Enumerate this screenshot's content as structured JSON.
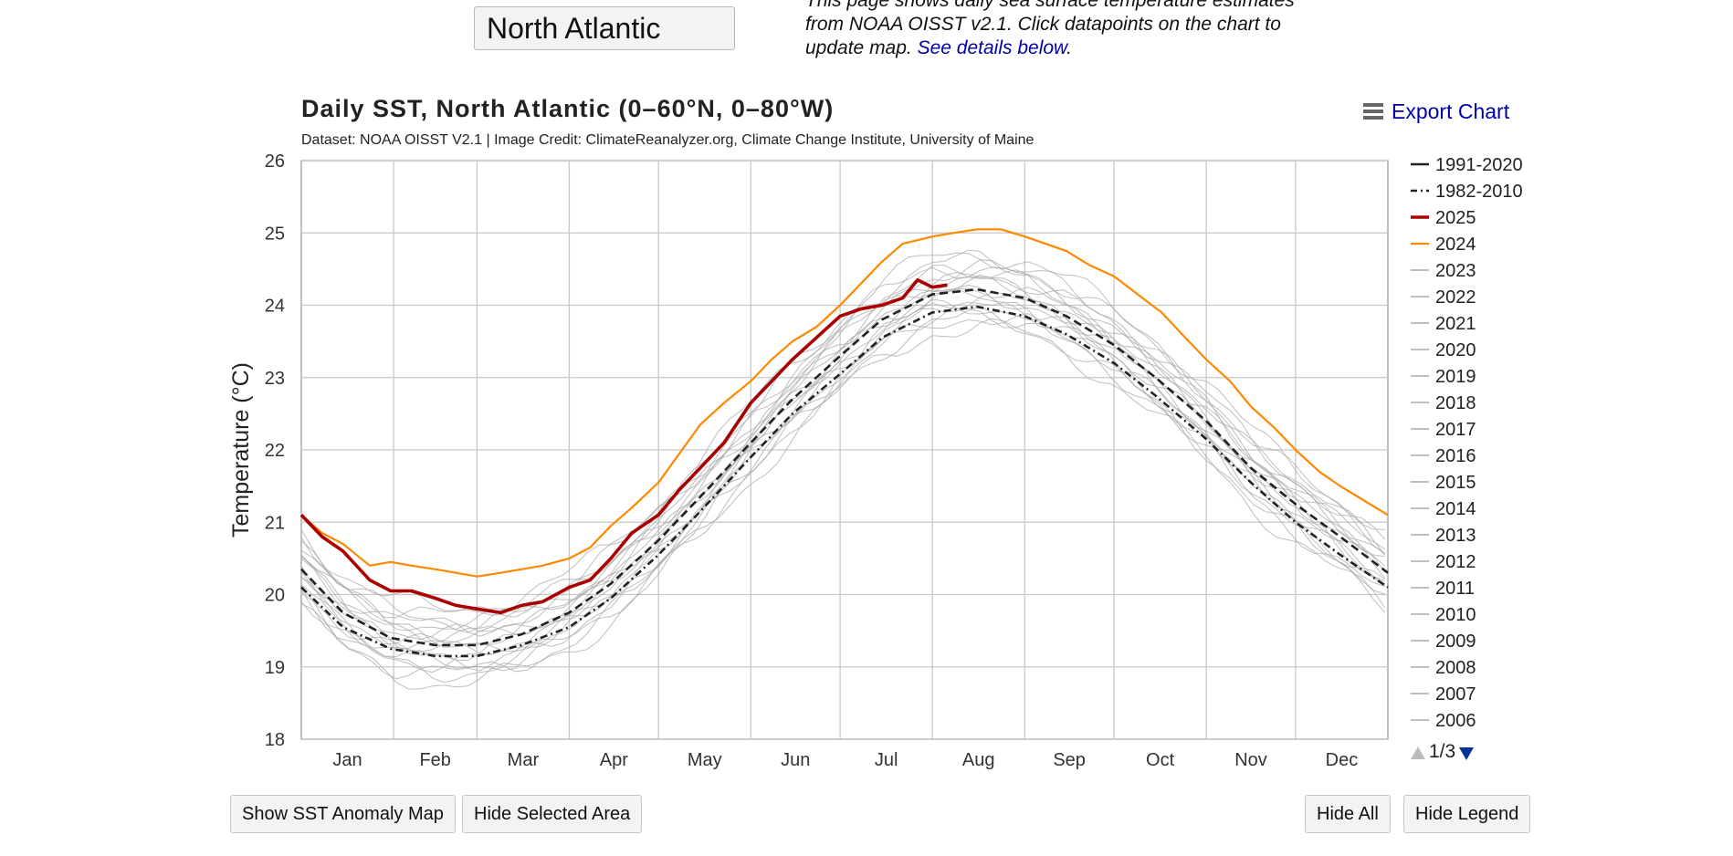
{
  "region_select": {
    "value": "North Atlantic"
  },
  "intro": {
    "text": "This page shows daily sea surface temperature estimates from NOAA OISST v2.1. Click datapoints on the chart to update map.",
    "link": "See details below",
    "end": "."
  },
  "export_label": "Export Chart",
  "buttons": {
    "show_anomaly": "Show SST Anomaly Map",
    "hide_area": "Hide Selected Area",
    "hide_all": "Hide All",
    "hide_legend": "Hide Legend"
  },
  "legend_page": "1/3",
  "colors": {
    "clim": "#222222",
    "y2025": "#aa0000",
    "y2024": "#ff8800",
    "past": "#aaaaaa",
    "grid": "#c8c8c8",
    "link": "#0000aa"
  },
  "chart_data": {
    "type": "line",
    "title": "Daily SST, North Atlantic (0–60°N, 0–80°W)",
    "subtitle": "Dataset: NOAA OISST V2.1 | Image Credit: ClimateReanalyzer.org, Climate Change Institute, University of Maine",
    "xlabel": "",
    "ylabel": "Temperature (°C)",
    "ylim": [
      18,
      26
    ],
    "yticks": [
      18,
      19,
      20,
      21,
      22,
      23,
      24,
      25,
      26
    ],
    "xlim": [
      1,
      366
    ],
    "months": [
      "Jan",
      "Feb",
      "Mar",
      "Apr",
      "May",
      "Jun",
      "Jul",
      "Aug",
      "Sep",
      "Oct",
      "Nov",
      "Dec"
    ],
    "month_starts": [
      1,
      32,
      60,
      91,
      121,
      152,
      182,
      213,
      244,
      274,
      305,
      335
    ],
    "series": [
      {
        "name": "1991-2020",
        "style": "dashed",
        "x": [
          1,
          15,
          31,
          46,
          60,
          75,
          91,
          105,
          121,
          135,
          152,
          166,
          182,
          196,
          213,
          228,
          244,
          258,
          274,
          288,
          305,
          320,
          335,
          350,
          366
        ],
        "values": [
          20.35,
          19.75,
          19.4,
          19.3,
          19.3,
          19.45,
          19.75,
          20.15,
          20.75,
          21.35,
          22.1,
          22.7,
          23.3,
          23.8,
          24.15,
          24.22,
          24.1,
          23.85,
          23.45,
          23.0,
          22.4,
          21.75,
          21.25,
          20.8,
          20.3
        ]
      },
      {
        "name": "1982-2010",
        "style": "dashdot",
        "x": [
          1,
          15,
          31,
          46,
          60,
          75,
          91,
          105,
          121,
          135,
          152,
          166,
          182,
          196,
          213,
          228,
          244,
          258,
          274,
          288,
          305,
          320,
          335,
          350,
          366
        ],
        "values": [
          20.1,
          19.55,
          19.25,
          19.15,
          19.15,
          19.3,
          19.55,
          19.95,
          20.55,
          21.15,
          21.9,
          22.5,
          23.05,
          23.55,
          23.9,
          23.98,
          23.85,
          23.6,
          23.2,
          22.75,
          22.15,
          21.55,
          21.0,
          20.55,
          20.1
        ]
      },
      {
        "name": "2025",
        "style": "bold",
        "x": [
          1,
          8,
          15,
          24,
          31,
          38,
          46,
          53,
          60,
          68,
          75,
          82,
          91,
          98,
          105,
          112,
          121,
          128,
          135,
          143,
          152,
          159,
          166,
          174,
          182,
          189,
          196,
          203,
          208,
          213,
          218
        ],
        "values": [
          21.1,
          20.8,
          20.6,
          20.2,
          20.05,
          20.05,
          19.95,
          19.85,
          19.8,
          19.75,
          19.85,
          19.9,
          20.1,
          20.2,
          20.5,
          20.85,
          21.1,
          21.45,
          21.75,
          22.1,
          22.65,
          22.95,
          23.25,
          23.55,
          23.85,
          23.95,
          24.0,
          24.1,
          24.35,
          24.25,
          24.28
        ]
      },
      {
        "name": "2024",
        "style": "solid",
        "x": [
          1,
          8,
          15,
          24,
          31,
          38,
          46,
          53,
          60,
          68,
          75,
          82,
          91,
          98,
          105,
          112,
          121,
          128,
          135,
          143,
          152,
          159,
          166,
          174,
          182,
          189,
          196,
          203,
          213,
          220,
          228,
          236,
          244,
          251,
          258,
          266,
          274,
          282,
          290,
          298,
          305,
          313,
          320,
          328,
          335,
          343,
          350,
          358,
          366
        ],
        "values": [
          21.1,
          20.85,
          20.7,
          20.4,
          20.45,
          20.4,
          20.35,
          20.3,
          20.25,
          20.3,
          20.35,
          20.4,
          20.5,
          20.65,
          20.95,
          21.2,
          21.55,
          21.95,
          22.35,
          22.65,
          22.95,
          23.25,
          23.5,
          23.7,
          24.0,
          24.3,
          24.6,
          24.85,
          24.95,
          25.0,
          25.05,
          25.05,
          24.95,
          24.85,
          24.75,
          24.55,
          24.4,
          24.15,
          23.9,
          23.55,
          23.25,
          22.95,
          22.6,
          22.3,
          22.0,
          21.7,
          21.5,
          21.3,
          21.1
        ]
      }
    ],
    "past_years": [
      "2023",
      "2022",
      "2021",
      "2020",
      "2019",
      "2018",
      "2017",
      "2016",
      "2015",
      "2014",
      "2013",
      "2012",
      "2011",
      "2010",
      "2009",
      "2008",
      "2007",
      "2006"
    ]
  }
}
